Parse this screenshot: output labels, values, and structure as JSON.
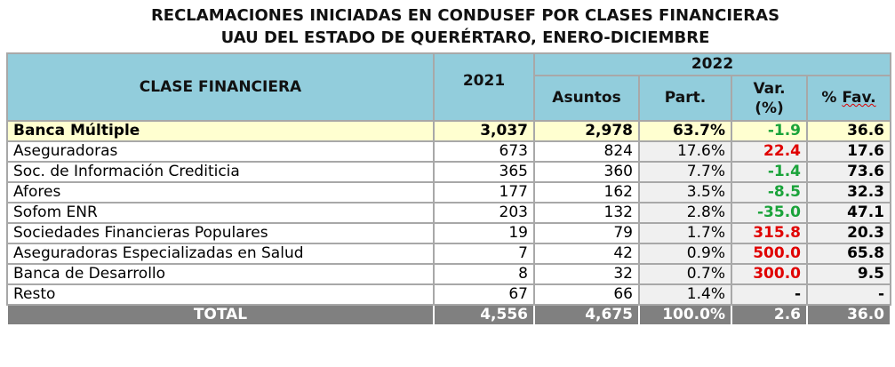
{
  "chart_data": {
    "type": "table",
    "title": [
      "RECLAMACIONES INICIADAS EN CONDUSEF POR CLASES FINANCIERAS",
      "UAU DEL ESTADO DE QUERÉRTARO, ENERO-DICIEMBRE"
    ],
    "header": {
      "clase": "CLASE FINANCIERA",
      "y2021": "2021",
      "y2022": "2022",
      "asuntos": "Asuntos",
      "part": "Part.",
      "var": "Var. (%)",
      "fav": "% Fav."
    },
    "colors": {
      "header_bg": "#92cddc",
      "highlight_bg": "#ffffd0",
      "total_bg": "#808080",
      "negative": "#1aa33a",
      "positive": "#e00000"
    },
    "rows": [
      {
        "clase": "Banca Múltiple",
        "y2021": "3,037",
        "asuntos": "2,978",
        "part": "63.7%",
        "var": "-1.9",
        "fav": "36.6",
        "hl": true
      },
      {
        "clase": "Aseguradoras",
        "y2021": "673",
        "asuntos": "824",
        "part": "17.6%",
        "var": "22.4",
        "fav": "17.6"
      },
      {
        "clase": "Soc. de Información Crediticia",
        "y2021": "365",
        "asuntos": "360",
        "part": "7.7%",
        "var": "-1.4",
        "fav": "73.6"
      },
      {
        "clase": "Afores",
        "y2021": "177",
        "asuntos": "162",
        "part": "3.5%",
        "var": "-8.5",
        "fav": "32.3"
      },
      {
        "clase": "Sofom ENR",
        "y2021": "203",
        "asuntos": "132",
        "part": "2.8%",
        "var": "-35.0",
        "fav": "47.1"
      },
      {
        "clase": "Sociedades Financieras Populares",
        "y2021": "19",
        "asuntos": "79",
        "part": "1.7%",
        "var": "315.8",
        "fav": "20.3"
      },
      {
        "clase": "Aseguradoras Especializadas en Salud",
        "y2021": "7",
        "asuntos": "42",
        "part": "0.9%",
        "var": "500.0",
        "fav": "65.8"
      },
      {
        "clase": "Banca de Desarrollo",
        "y2021": "8",
        "asuntos": "32",
        "part": "0.7%",
        "var": "300.0",
        "fav": "9.5"
      },
      {
        "clase": "Resto",
        "y2021": "67",
        "asuntos": "66",
        "part": "1.4%",
        "var": "-",
        "fav": "-"
      }
    ],
    "total": {
      "clase": "TOTAL",
      "y2021": "4,556",
      "asuntos": "4,675",
      "part": "100.0%",
      "var": "2.6",
      "fav": "36.0"
    }
  }
}
